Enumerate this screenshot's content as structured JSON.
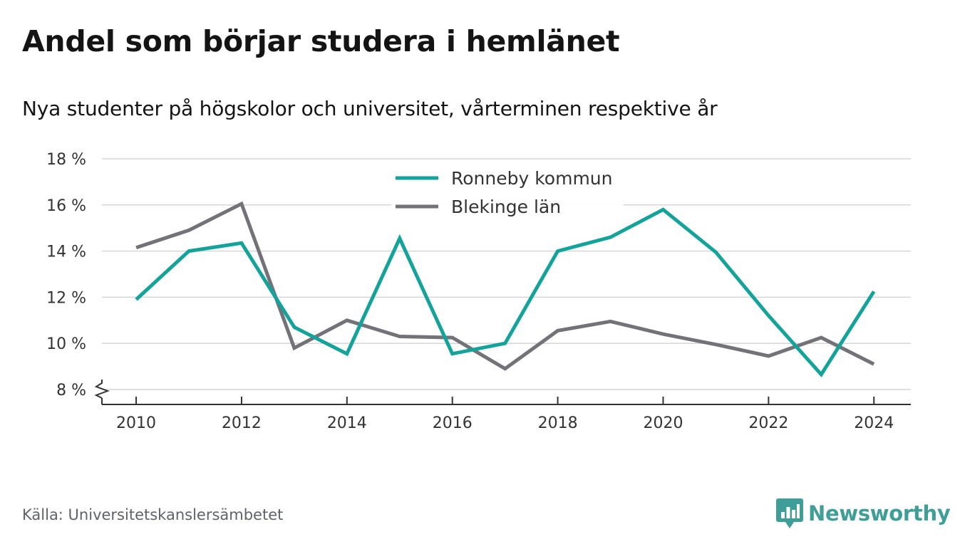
{
  "title": "Andel som börjar studera i hemlänet",
  "subtitle": "Nya studenter på högskolor och universitet, vårterminen respektive år",
  "source": "Källa: Universitetskanslersämbetet",
  "brand": {
    "name": "Newsworthy",
    "icon": "newsworthy-logo-icon",
    "color": "#3f9e97"
  },
  "colors": {
    "grid": "#d6d6d6",
    "axis": "#333333",
    "text": "#333333"
  },
  "chart_data": {
    "type": "line",
    "x": [
      2010,
      2011,
      2012,
      2013,
      2014,
      2015,
      2016,
      2017,
      2018,
      2019,
      2020,
      2021,
      2022,
      2023,
      2024
    ],
    "xticks": [
      2010,
      2012,
      2014,
      2016,
      2018,
      2020,
      2022,
      2024
    ],
    "xtick_labels": [
      "2010",
      "2012",
      "2014",
      "2016",
      "2018",
      "2020",
      "2022",
      "2024"
    ],
    "yticks": [
      8,
      10,
      12,
      14,
      16,
      18
    ],
    "ytick_labels": [
      "8 %",
      "10 %",
      "12 %",
      "14 %",
      "16 %",
      "18 %"
    ],
    "ylim": [
      8,
      18
    ],
    "xlim": [
      2009.35,
      2024.7
    ],
    "axis_break": "y-axis broken below 8 %",
    "grid": true,
    "legend_position": "top-center",
    "series": [
      {
        "name": "Ronneby kommun",
        "color": "#13a39a",
        "values": [
          11.9,
          14.0,
          14.35,
          10.7,
          9.55,
          14.55,
          9.55,
          10.0,
          14.0,
          14.6,
          15.8,
          13.95,
          11.2,
          8.65,
          12.25
        ]
      },
      {
        "name": "Blekinge län",
        "color": "#737278",
        "values": [
          14.15,
          14.9,
          16.05,
          9.8,
          11.0,
          10.3,
          10.25,
          8.9,
          10.55,
          10.95,
          10.4,
          9.95,
          9.45,
          10.25,
          9.1
        ]
      }
    ]
  }
}
